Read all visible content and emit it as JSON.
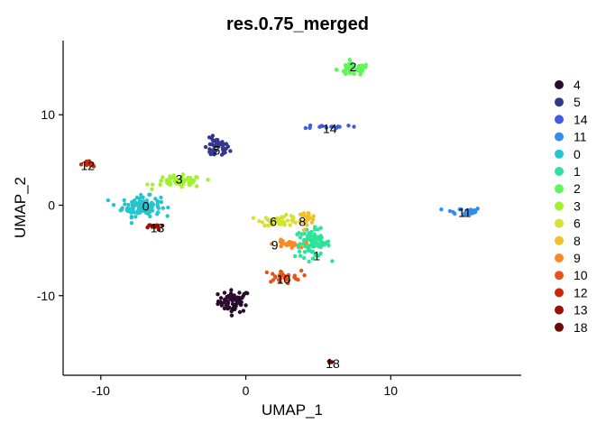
{
  "chart_data": {
    "type": "scatter",
    "title": "res.0.75_merged",
    "xlabel": "UMAP_1",
    "ylabel": "UMAP_2",
    "xlim": [
      -12.6,
      19.0
    ],
    "ylim": [
      -18.8,
      18.2
    ],
    "x_ticks": [
      -10,
      0,
      10
    ],
    "y_ticks": [
      10,
      0,
      -10
    ],
    "x_tick_labels": [
      "-10",
      "0",
      "10"
    ],
    "y_tick_labels": [
      "10",
      "0",
      "-10"
    ],
    "grid": false,
    "legend_position": "right",
    "legend_order": [
      "4",
      "5",
      "14",
      "11",
      "0",
      "1",
      "2",
      "3",
      "6",
      "8",
      "9",
      "10",
      "12",
      "13",
      "18"
    ],
    "series": [
      {
        "name": "4",
        "color": "#2b0c2e",
        "center": [
          -0.8,
          -10.6
        ],
        "spread": [
          1.0,
          1.1
        ],
        "n": 60
      },
      {
        "name": "5",
        "color": "#34378e",
        "center": [
          -2.0,
          6.3
        ],
        "spread": [
          0.8,
          1.0
        ],
        "n": 45
      },
      {
        "name": "14",
        "color": "#3f5be0",
        "center": [
          5.8,
          8.7
        ],
        "spread": [
          1.6,
          0.2
        ],
        "n": 14
      },
      {
        "name": "11",
        "color": "#2f8ef0",
        "center": [
          15.0,
          -0.7
        ],
        "spread": [
          1.2,
          0.4
        ],
        "n": 24
      },
      {
        "name": "0",
        "color": "#26c4cf",
        "center": [
          -7.2,
          -0.1
        ],
        "spread": [
          1.2,
          1.0
        ],
        "n": 120
      },
      {
        "name": "1",
        "color": "#2de29a",
        "center": [
          4.6,
          -4.2
        ],
        "spread": [
          1.1,
          1.4
        ],
        "n": 85
      },
      {
        "name": "2",
        "color": "#5ff65a",
        "center": [
          7.4,
          15.0
        ],
        "spread": [
          1.0,
          0.6
        ],
        "n": 55
      },
      {
        "name": "3",
        "color": "#9ff22c",
        "center": [
          -4.6,
          2.6
        ],
        "spread": [
          1.5,
          0.6
        ],
        "n": 55
      },
      {
        "name": "6",
        "color": "#d5e231",
        "center": [
          2.4,
          -1.7
        ],
        "spread": [
          1.2,
          0.5
        ],
        "n": 45
      },
      {
        "name": "8",
        "color": "#efbf2c",
        "center": [
          4.2,
          -1.4
        ],
        "spread": [
          0.6,
          0.6
        ],
        "n": 22
      },
      {
        "name": "9",
        "color": "#fb8a24",
        "center": [
          2.8,
          -4.3
        ],
        "spread": [
          0.8,
          0.4
        ],
        "n": 28
      },
      {
        "name": "10",
        "color": "#e8521b",
        "center": [
          2.5,
          -7.9
        ],
        "spread": [
          1.2,
          0.6
        ],
        "n": 30
      },
      {
        "name": "12",
        "color": "#c8290c",
        "center": [
          -10.9,
          4.5
        ],
        "spread": [
          0.4,
          0.4
        ],
        "n": 14
      },
      {
        "name": "13",
        "color": "#9b1103",
        "center": [
          -6.2,
          -2.4
        ],
        "spread": [
          0.5,
          0.3
        ],
        "n": 14
      },
      {
        "name": "18",
        "color": "#6a0d06",
        "center": [
          5.8,
          -17.3
        ],
        "spread": [
          0.15,
          0.2
        ],
        "n": 4
      }
    ],
    "cluster_labels": [
      {
        "text": "2",
        "x": 7.4,
        "y": 15.3
      },
      {
        "text": "14",
        "x": 5.8,
        "y": 8.5
      },
      {
        "text": "5",
        "x": -2.0,
        "y": 6.1
      },
      {
        "text": "12",
        "x": -10.9,
        "y": 4.4
      },
      {
        "text": "3",
        "x": -4.6,
        "y": 2.9
      },
      {
        "text": "0",
        "x": -6.9,
        "y": -0.1
      },
      {
        "text": "11",
        "x": 15.1,
        "y": -0.8
      },
      {
        "text": "6",
        "x": 1.9,
        "y": -1.8
      },
      {
        "text": "8",
        "x": 3.9,
        "y": -1.8
      },
      {
        "text": "13",
        "x": -6.1,
        "y": -2.5
      },
      {
        "text": "9",
        "x": 2.0,
        "y": -4.4
      },
      {
        "text": "1",
        "x": 4.9,
        "y": -5.6
      },
      {
        "text": "10",
        "x": 2.6,
        "y": -8.2
      },
      {
        "text": "4",
        "x": -0.8,
        "y": -11.2
      },
      {
        "text": "18",
        "x": 6.0,
        "y": -17.5
      }
    ]
  }
}
